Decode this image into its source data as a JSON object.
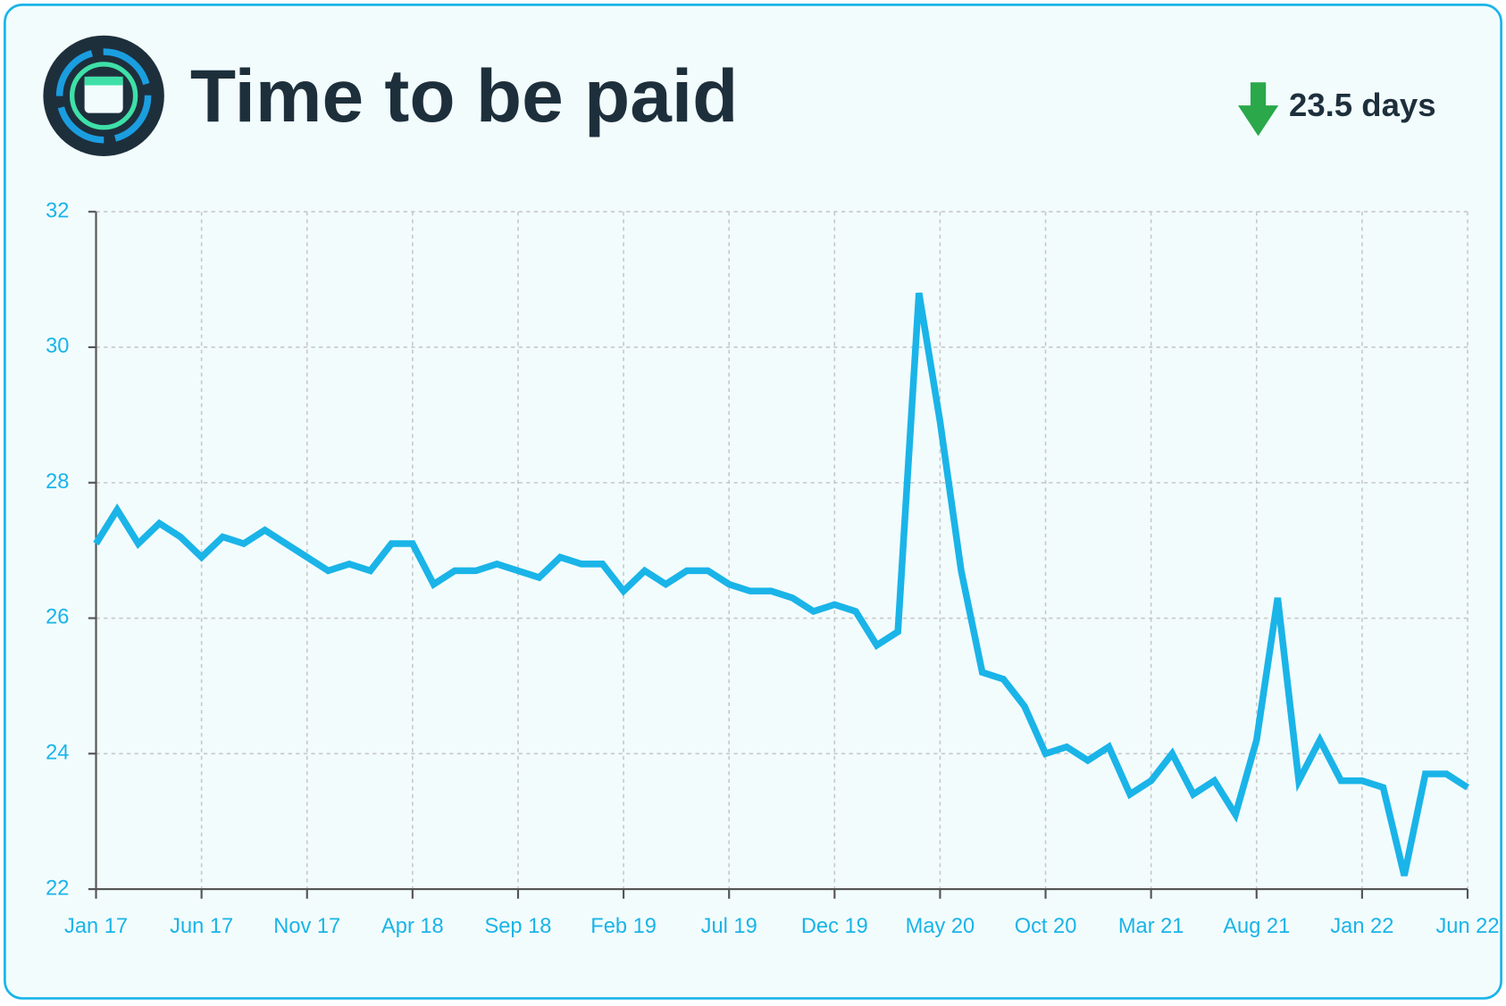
{
  "chart_data": {
    "type": "line",
    "title": "Time to be paid",
    "kpi": "23.5 days",
    "categories": [
      "Jan 17",
      null,
      null,
      null,
      null,
      "Jun 17",
      null,
      null,
      null,
      null,
      "Nov 17",
      null,
      null,
      null,
      null,
      "Apr 18",
      null,
      null,
      null,
      null,
      "Sep 18",
      null,
      null,
      null,
      null,
      "Feb 19",
      null,
      null,
      null,
      null,
      "Jul 19",
      null,
      null,
      null,
      null,
      "Dec 19",
      null,
      null,
      null,
      null,
      "May 20",
      null,
      null,
      null,
      null,
      "Oct 20",
      null,
      null,
      null,
      null,
      "Mar 21",
      null,
      null,
      null,
      null,
      "Aug 21",
      null,
      null,
      null,
      null,
      "Jan 22",
      null,
      null,
      null,
      null,
      "Jun 22"
    ],
    "values": [
      27.1,
      27.6,
      27.1,
      27.4,
      27.2,
      26.9,
      27.2,
      27.1,
      27.3,
      27.1,
      26.9,
      26.7,
      26.8,
      26.7,
      27.1,
      27.1,
      26.5,
      26.7,
      26.7,
      26.8,
      26.7,
      26.6,
      26.9,
      26.8,
      26.8,
      26.4,
      26.7,
      26.5,
      26.7,
      26.7,
      26.5,
      26.4,
      26.4,
      26.3,
      26.1,
      26.2,
      26.1,
      25.6,
      25.8,
      30.8,
      28.9,
      26.7,
      25.2,
      25.1,
      24.7,
      24.0,
      24.1,
      23.9,
      24.1,
      23.4,
      23.6,
      24.0,
      23.4,
      23.6,
      23.1,
      24.2,
      26.3,
      23.6,
      24.2,
      23.6,
      23.6,
      23.5,
      22.2,
      23.7,
      23.7,
      23.5
    ],
    "color": "#1ab4e8",
    "ylim": [
      22,
      32
    ],
    "yticks": [
      22,
      24,
      26,
      28,
      30,
      32
    ],
    "grid": true
  }
}
